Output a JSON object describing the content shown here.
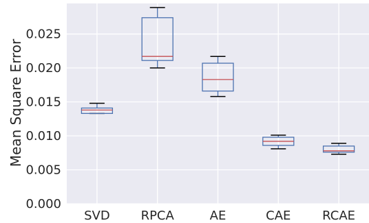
{
  "chart_data": {
    "type": "box",
    "title": "",
    "xlabel": "",
    "ylabel": "Mean Square Error",
    "ylim": [
      0,
      0.0295
    ],
    "yticks": [
      "0.000",
      "0.005",
      "0.010",
      "0.015",
      "0.020",
      "0.025"
    ],
    "grid": true,
    "legend": "none",
    "categories": [
      "SVD",
      "RPCA",
      "AE",
      "CAE",
      "RCAE"
    ],
    "boxes": [
      {
        "category": "SVD",
        "whisker_low": 0.0133,
        "q1": 0.0133,
        "median": 0.0138,
        "q3": 0.0141,
        "whisker_high": 0.0148
      },
      {
        "category": "RPCA",
        "whisker_low": 0.02,
        "q1": 0.0211,
        "median": 0.0217,
        "q3": 0.0274,
        "whisker_high": 0.0289
      },
      {
        "category": "AE",
        "whisker_low": 0.0158,
        "q1": 0.0166,
        "median": 0.0183,
        "q3": 0.0207,
        "whisker_high": 0.0217
      },
      {
        "category": "CAE",
        "whisker_low": 0.0081,
        "q1": 0.0086,
        "median": 0.0092,
        "q3": 0.0098,
        "whisker_high": 0.0101
      },
      {
        "category": "RCAE",
        "whisker_low": 0.0073,
        "q1": 0.0076,
        "median": 0.0078,
        "q3": 0.0085,
        "whisker_high": 0.0089
      }
    ],
    "colors": {
      "plot_background": "#eaeaf2",
      "grid": "#ffffff",
      "box": "#4c72b0",
      "median": "#c44e52",
      "whisker": "#000000"
    }
  }
}
